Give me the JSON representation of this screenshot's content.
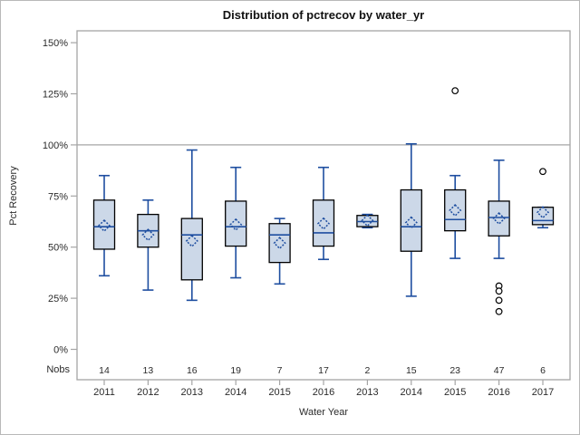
{
  "window": {
    "background": "#ffffff",
    "border_color": "#b9b9b9"
  },
  "chart_data": {
    "type": "boxplot",
    "title": "Distribution of pctrecov by water_yr",
    "xlabel": "Water Year",
    "ylabel": "Pct Recovery",
    "nobs_label": "Nobs",
    "y_ticks": [
      {
        "value": 0,
        "label": "0%"
      },
      {
        "value": 25,
        "label": "25%"
      },
      {
        "value": 50,
        "label": "50%"
      },
      {
        "value": 75,
        "label": "75%"
      },
      {
        "value": 100,
        "label": "100%"
      },
      {
        "value": 125,
        "label": "125%"
      },
      {
        "value": 150,
        "label": "150%"
      }
    ],
    "ylim": [
      -15,
      156
    ],
    "reference_line": 100,
    "grid": false,
    "legend": "none",
    "categories": [
      "2011",
      "2012",
      "2013",
      "2014",
      "2015",
      "2016",
      "2013",
      "2014",
      "2015",
      "2016",
      "2017"
    ],
    "nobs": [
      14,
      13,
      16,
      19,
      7,
      17,
      2,
      15,
      23,
      47,
      6
    ],
    "boxes": [
      {
        "category": "2011",
        "nobs": 14,
        "low": 36,
        "q1": 49,
        "median": 60,
        "mean": 60.5,
        "q3": 73,
        "high": 85,
        "outliers": []
      },
      {
        "category": "2012",
        "nobs": 13,
        "low": 29,
        "q1": 50,
        "median": 58,
        "mean": 56,
        "q3": 66,
        "high": 73,
        "outliers": []
      },
      {
        "category": "2013",
        "nobs": 16,
        "low": 24,
        "q1": 34,
        "median": 56,
        "mean": 53,
        "q3": 64,
        "high": 97.5,
        "outliers": []
      },
      {
        "category": "2014",
        "nobs": 19,
        "low": 35,
        "q1": 50.5,
        "median": 60,
        "mean": 61,
        "q3": 72.5,
        "high": 89,
        "outliers": []
      },
      {
        "category": "2015",
        "nobs": 7,
        "low": 32,
        "q1": 42.5,
        "median": 56,
        "mean": 52,
        "q3": 61.5,
        "high": 64,
        "outliers": []
      },
      {
        "category": "2016",
        "nobs": 17,
        "low": 44,
        "q1": 50.5,
        "median": 57,
        "mean": 61.5,
        "q3": 73,
        "high": 89,
        "outliers": []
      },
      {
        "category": "2013",
        "nobs": 2,
        "low": 59.5,
        "q1": 60,
        "median": 62.5,
        "mean": 63,
        "q3": 65.5,
        "high": 66,
        "outliers": []
      },
      {
        "category": "2014",
        "nobs": 15,
        "low": 26,
        "q1": 48,
        "median": 60,
        "mean": 62,
        "q3": 78,
        "high": 100.5,
        "outliers": []
      },
      {
        "category": "2015",
        "nobs": 23,
        "low": 44.5,
        "q1": 58,
        "median": 63.5,
        "mean": 68,
        "q3": 78,
        "high": 85,
        "outliers": [
          126.5
        ]
      },
      {
        "category": "2016",
        "nobs": 47,
        "low": 44.5,
        "q1": 55.5,
        "median": 64.5,
        "mean": 64,
        "q3": 72.5,
        "high": 92.5,
        "outliers": [
          31,
          28.5,
          24,
          18.5
        ]
      },
      {
        "category": "2017",
        "nobs": 6,
        "low": 59.5,
        "q1": 61,
        "median": 63,
        "mean": 67,
        "q3": 69.5,
        "high": 69.5,
        "outliers": [
          87
        ]
      }
    ],
    "colors": {
      "box_fill": "#ccd8e8",
      "box_border": "#000000",
      "line_blue": "#1e4ea0",
      "outlier_stroke": "#000000",
      "frame": "#a5a5a5",
      "reference_line": "#a5a5a5",
      "tick_text": "#2b2b2b",
      "title_text": "#111111"
    }
  }
}
